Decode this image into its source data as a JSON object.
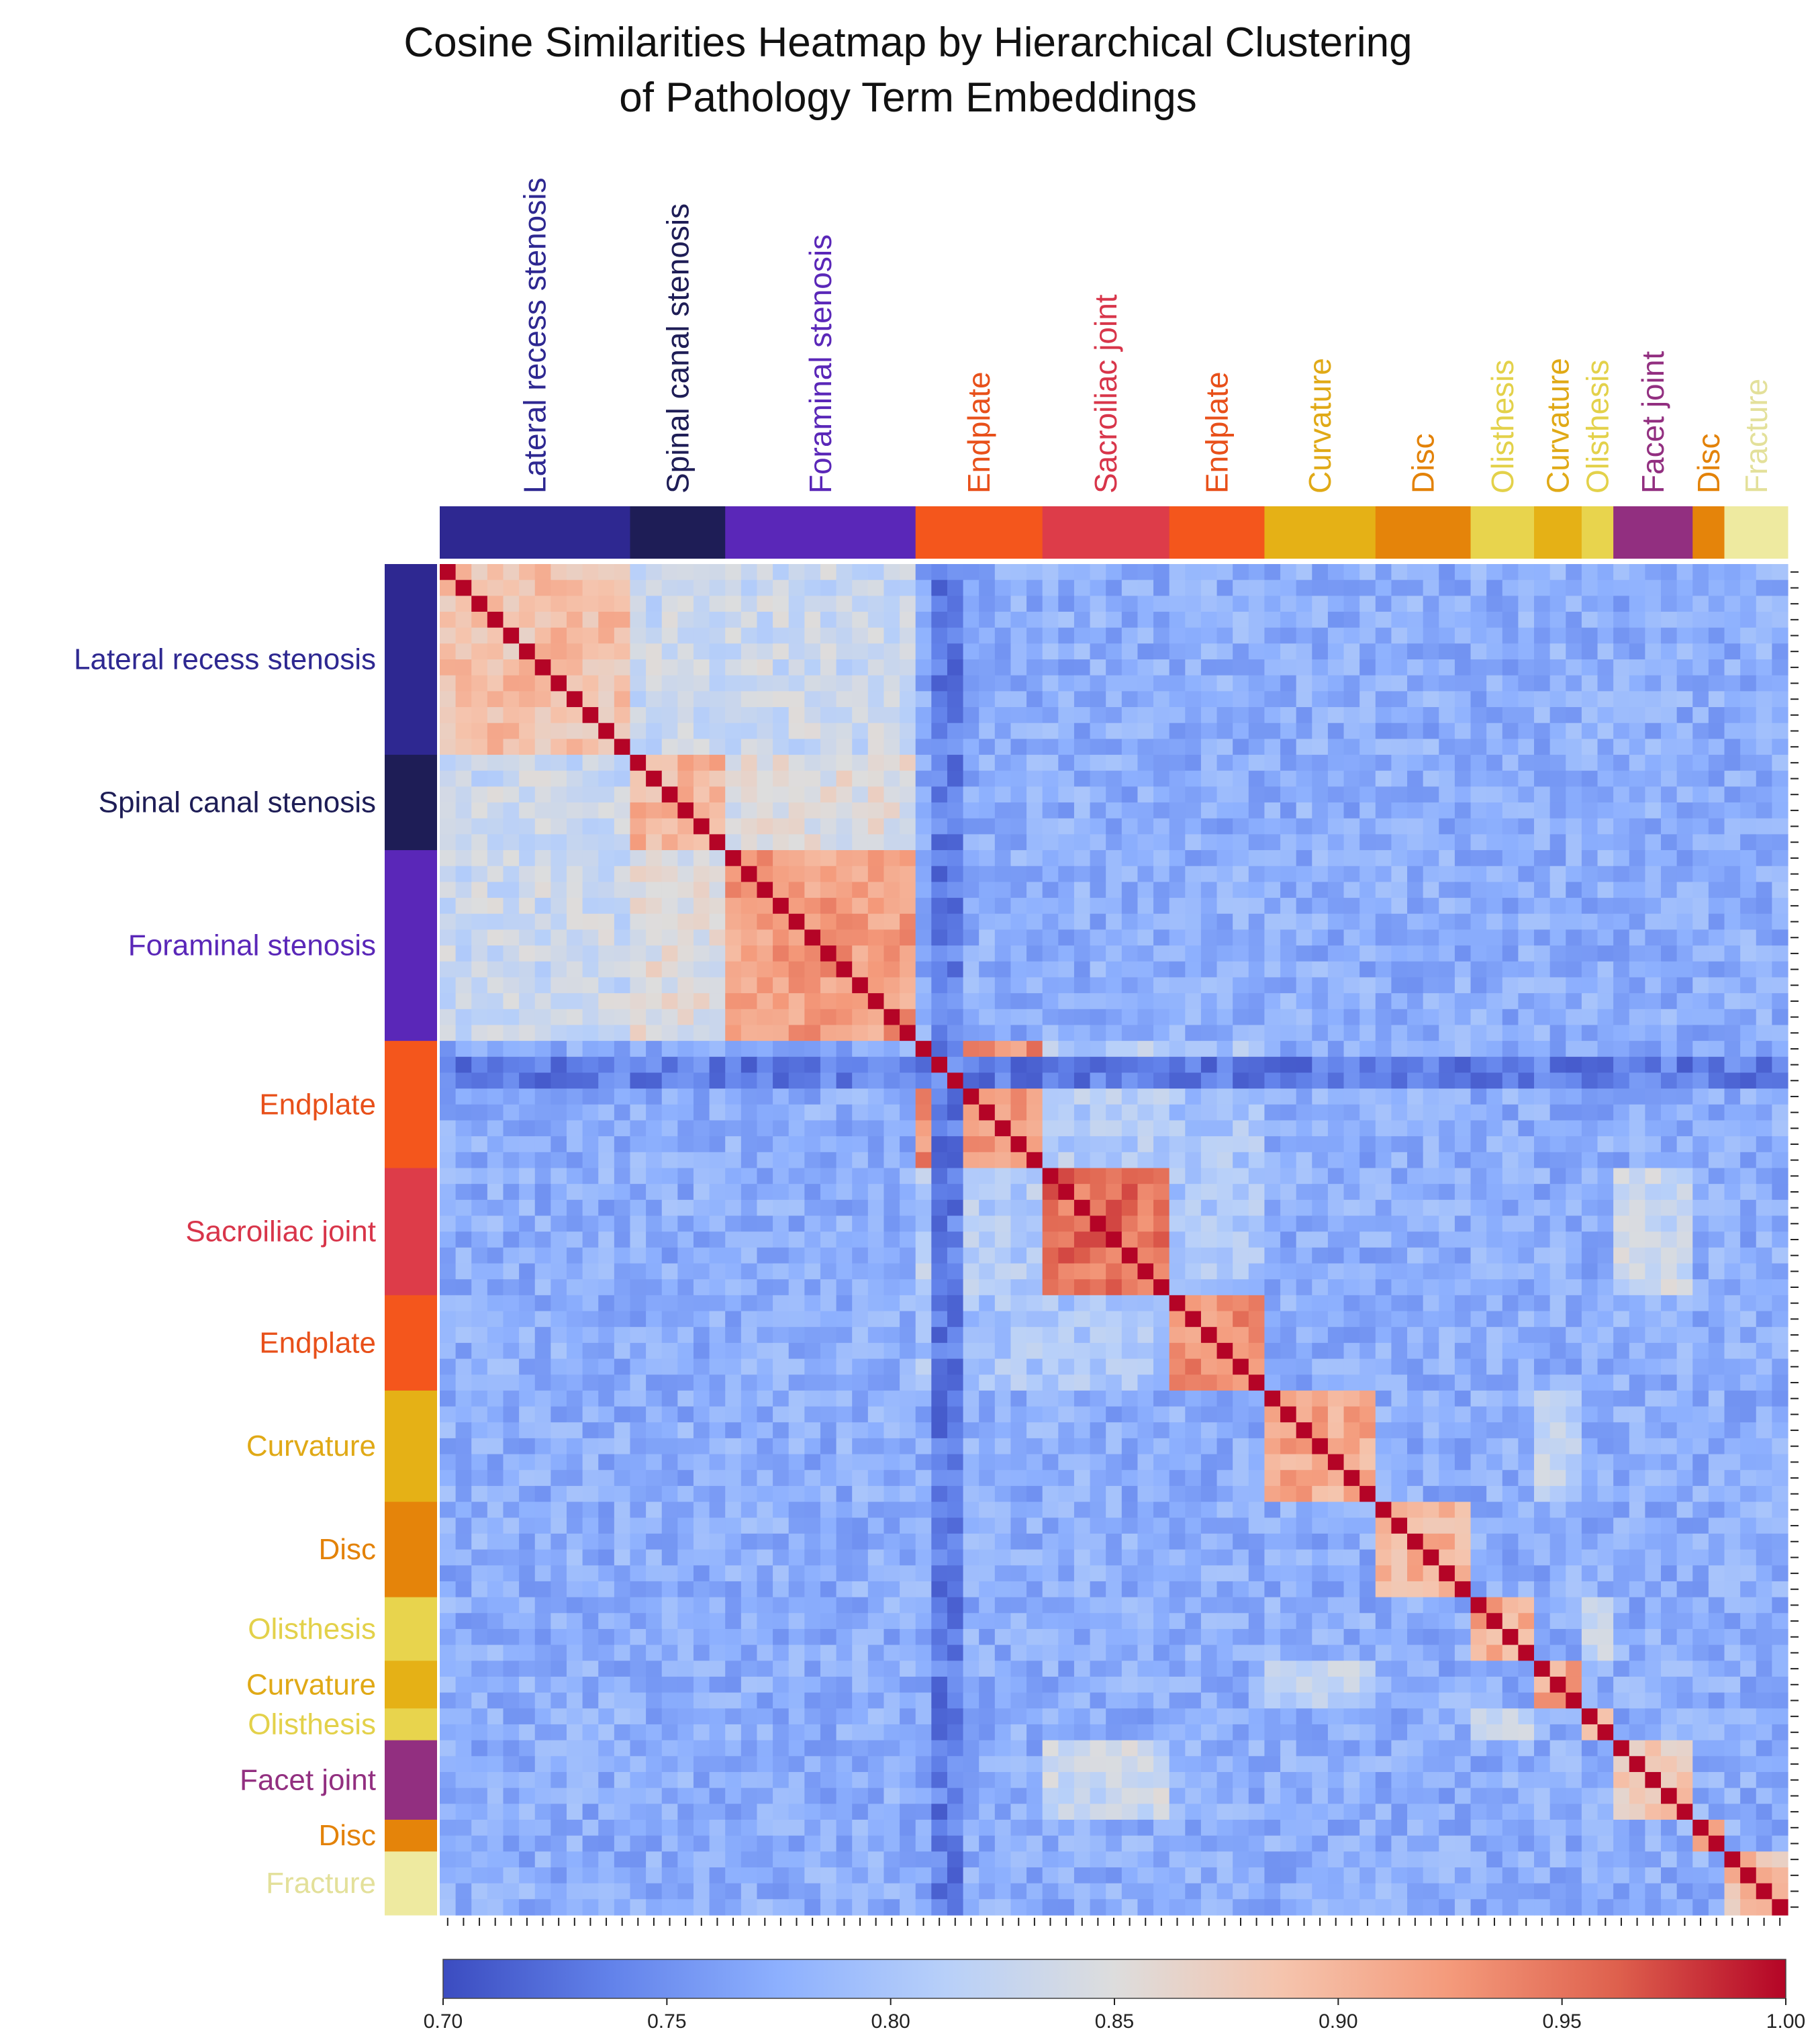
{
  "title_line1": "Cosine Similarities Heatmap by Hierarchical Clustering",
  "title_line2": "of Pathology Term Embeddings",
  "chart_data": {
    "type": "heatmap",
    "title": "Cosine Similarities Heatmap by Hierarchical Clustering of Pathology Term Embeddings",
    "n_terms": 85,
    "value_range": [
      0.7,
      1.0
    ],
    "diagonal_value": 1.0,
    "colormap": "coolwarm",
    "colorbar": {
      "ticks": [
        0.7,
        0.75,
        0.8,
        0.85,
        0.9,
        0.95,
        1.0
      ],
      "tick_labels": [
        "0.70",
        "0.75",
        "0.80",
        "0.85",
        "0.90",
        "0.95",
        "1.00"
      ]
    },
    "groups": [
      {
        "label": "Lateral recess stenosis",
        "count": 12,
        "color": "#2e2891",
        "intra": 0.89,
        "text_color": "#2e2891"
      },
      {
        "label": "Spinal canal stenosis",
        "count": 6,
        "color": "#1e1d56",
        "intra": 0.9,
        "text_color": "#1e1d56"
      },
      {
        "label": "Foraminal stenosis",
        "count": 12,
        "color": "#5a27b8",
        "intra": 0.92,
        "text_color": "#5a27b8"
      },
      {
        "label": "Endplate",
        "count": 8,
        "color": "#f4561c",
        "intra": 0.93,
        "text_color": "#e8501a"
      },
      {
        "label": "Sacroiliac joint",
        "count": 8,
        "color": "#dd3c49",
        "intra": 0.95,
        "text_color": "#d8354a"
      },
      {
        "label": "Endplate",
        "count": 6,
        "color": "#f4561c",
        "intra": 0.93,
        "text_color": "#e8501a"
      },
      {
        "label": "Curvature",
        "count": 7,
        "color": "#e5b116",
        "intra": 0.91,
        "text_color": "#e0a916"
      },
      {
        "label": "Disc",
        "count": 6,
        "color": "#e5840a",
        "intra": 0.9,
        "text_color": "#e38208"
      },
      {
        "label": "Olisthesis",
        "count": 4,
        "color": "#e8d44d",
        "intra": 0.91,
        "text_color": "#e3d14a"
      },
      {
        "label": "Curvature",
        "count": 3,
        "color": "#e5b116",
        "intra": 0.91,
        "text_color": "#e0a916"
      },
      {
        "label": "Olisthesis",
        "count": 2,
        "color": "#e8d44d",
        "intra": 0.89,
        "text_color": "#e3d14a"
      },
      {
        "label": "Facet joint",
        "count": 5,
        "color": "#922f80",
        "intra": 0.88,
        "text_color": "#922f80"
      },
      {
        "label": "Disc",
        "count": 2,
        "color": "#e5840a",
        "intra": 0.9,
        "text_color": "#e38208"
      },
      {
        "label": "Fracture",
        "count": 4,
        "color": "#eeeaa0",
        "intra": 0.89,
        "text_color": "#e3e09a"
      }
    ],
    "background_similarity": 0.775,
    "group_pair_similarity": [
      {
        "groups": [
          0,
          1
        ],
        "value": 0.83
      },
      {
        "groups": [
          0,
          2
        ],
        "value": 0.83
      },
      {
        "groups": [
          1,
          2
        ],
        "value": 0.85
      },
      {
        "groups": [
          3,
          4
        ],
        "value": 0.81
      },
      {
        "groups": [
          4,
          5
        ],
        "value": 0.8
      },
      {
        "groups": [
          3,
          5
        ],
        "value": 0.8
      },
      {
        "groups": [
          6,
          9
        ],
        "value": 0.82
      },
      {
        "groups": [
          8,
          10
        ],
        "value": 0.82
      },
      {
        "groups": [
          4,
          11
        ],
        "value": 0.83
      }
    ],
    "low_similarity_rows": [
      31,
      32
    ]
  }
}
